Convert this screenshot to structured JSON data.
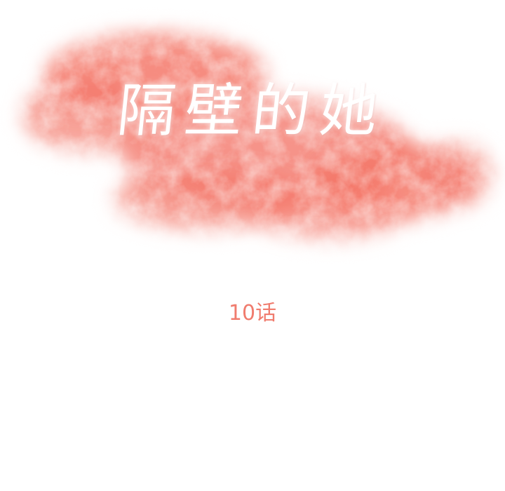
{
  "cover": {
    "title": "隔壁的她",
    "chapter": "10话"
  },
  "colors": {
    "background": "#ffffff",
    "cloud": "#f4786a",
    "title_text": "#ffffff",
    "chapter_text": "#f07c6e"
  }
}
